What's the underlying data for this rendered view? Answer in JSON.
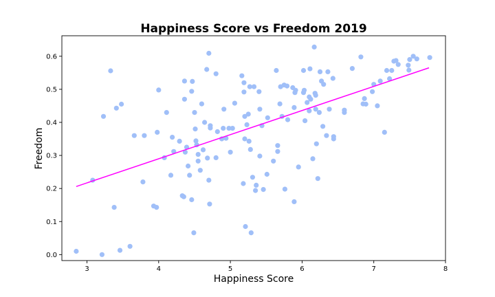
{
  "chart_data": {
    "type": "scatter",
    "title": "Happiness Score vs Freedom 2019",
    "xlabel": "Happiness Score",
    "ylabel": "Freedom",
    "xlim": [
      2.65,
      8.0
    ],
    "ylim": [
      -0.018,
      0.662
    ],
    "xticks": [
      {
        "value": 3,
        "label": "3"
      },
      {
        "value": 4,
        "label": "4"
      },
      {
        "value": 5,
        "label": "5"
      },
      {
        "value": 6,
        "label": "6"
      },
      {
        "value": 7,
        "label": "7"
      },
      {
        "value": 8,
        "label": "8"
      }
    ],
    "yticks": [
      {
        "value": 0.0,
        "label": "0.0"
      },
      {
        "value": 0.1,
        "label": "0.1"
      },
      {
        "value": 0.2,
        "label": "0.2"
      },
      {
        "value": 0.3,
        "label": "0.3"
      },
      {
        "value": 0.4,
        "label": "0.4"
      },
      {
        "value": 0.5,
        "label": "0.5"
      },
      {
        "value": 0.6,
        "label": "0.6"
      }
    ],
    "grid": false,
    "point_color": "#a0bff8",
    "line_color": "#ff00ff",
    "points": [
      [
        2.85,
        0.01
      ],
      [
        3.08,
        0.225
      ],
      [
        3.21,
        0.0
      ],
      [
        3.23,
        0.418
      ],
      [
        3.33,
        0.556
      ],
      [
        3.38,
        0.143
      ],
      [
        3.41,
        0.443
      ],
      [
        3.46,
        0.013
      ],
      [
        3.48,
        0.455
      ],
      [
        3.6,
        0.025
      ],
      [
        3.66,
        0.36
      ],
      [
        3.78,
        0.22
      ],
      [
        3.8,
        0.36
      ],
      [
        3.93,
        0.147
      ],
      [
        3.97,
        0.143
      ],
      [
        3.98,
        0.37
      ],
      [
        4.0,
        0.498
      ],
      [
        4.08,
        0.293
      ],
      [
        4.11,
        0.43
      ],
      [
        4.17,
        0.24
      ],
      [
        4.19,
        0.355
      ],
      [
        4.21,
        0.312
      ],
      [
        4.29,
        0.343
      ],
      [
        4.33,
        0.178
      ],
      [
        4.35,
        0.175
      ],
      [
        4.36,
        0.47
      ],
      [
        4.36,
        0.525
      ],
      [
        4.37,
        0.31
      ],
      [
        4.39,
        0.325
      ],
      [
        4.41,
        0.268
      ],
      [
        4.43,
        0.24
      ],
      [
        4.46,
        0.166
      ],
      [
        4.46,
        0.494
      ],
      [
        4.47,
        0.524
      ],
      [
        4.49,
        0.066
      ],
      [
        4.5,
        0.43
      ],
      [
        4.51,
        0.38
      ],
      [
        4.52,
        0.344
      ],
      [
        4.53,
        0.332
      ],
      [
        4.55,
        0.303
      ],
      [
        4.55,
        0.283
      ],
      [
        4.58,
        0.255
      ],
      [
        4.6,
        0.456
      ],
      [
        4.62,
        0.317
      ],
      [
        4.64,
        0.4
      ],
      [
        4.67,
        0.56
      ],
      [
        4.68,
        0.292
      ],
      [
        4.7,
        0.609
      ],
      [
        4.7,
        0.225
      ],
      [
        4.71,
        0.153
      ],
      [
        4.72,
        0.39
      ],
      [
        4.72,
        0.383
      ],
      [
        4.8,
        0.547
      ],
      [
        4.8,
        0.293
      ],
      [
        4.82,
        0.372
      ],
      [
        4.88,
        0.35
      ],
      [
        4.9,
        0.382
      ],
      [
        4.91,
        0.44
      ],
      [
        4.94,
        0.352
      ],
      [
        4.98,
        0.382
      ],
      [
        5.0,
        0.31
      ],
      [
        5.03,
        0.382
      ],
      [
        5.06,
        0.458
      ],
      [
        5.16,
        0.541
      ],
      [
        5.18,
        0.215
      ],
      [
        5.19,
        0.492
      ],
      [
        5.19,
        0.52
      ],
      [
        5.2,
        0.35
      ],
      [
        5.2,
        0.418
      ],
      [
        5.21,
        0.085
      ],
      [
        5.23,
        0.393
      ],
      [
        5.25,
        0.425
      ],
      [
        5.26,
        0.343
      ],
      [
        5.27,
        0.508
      ],
      [
        5.28,
        0.318
      ],
      [
        5.29,
        0.066
      ],
      [
        5.31,
        0.234
      ],
      [
        5.33,
        0.508
      ],
      [
        5.35,
        0.194
      ],
      [
        5.36,
        0.21
      ],
      [
        5.4,
        0.493
      ],
      [
        5.41,
        0.298
      ],
      [
        5.41,
        0.44
      ],
      [
        5.44,
        0.39
      ],
      [
        5.46,
        0.197
      ],
      [
        5.51,
        0.243
      ],
      [
        5.52,
        0.414
      ],
      [
        5.6,
        0.283
      ],
      [
        5.64,
        0.557
      ],
      [
        5.66,
        0.33
      ],
      [
        5.66,
        0.312
      ],
      [
        5.69,
        0.456
      ],
      [
        5.7,
        0.508
      ],
      [
        5.72,
        0.418
      ],
      [
        5.75,
        0.513
      ],
      [
        5.76,
        0.198
      ],
      [
        5.79,
        0.51
      ],
      [
        5.8,
        0.408
      ],
      [
        5.87,
        0.505
      ],
      [
        5.89,
        0.16
      ],
      [
        5.89,
        0.445
      ],
      [
        5.9,
        0.49
      ],
      [
        5.91,
        0.497
      ],
      [
        5.95,
        0.265
      ],
      [
        6.02,
        0.557
      ],
      [
        6.02,
        0.49
      ],
      [
        6.03,
        0.497
      ],
      [
        6.04,
        0.405
      ],
      [
        6.07,
        0.46
      ],
      [
        6.1,
        0.477
      ],
      [
        6.1,
        0.435
      ],
      [
        6.11,
        0.562
      ],
      [
        6.12,
        0.47
      ],
      [
        6.15,
        0.29
      ],
      [
        6.17,
        0.628
      ],
      [
        6.18,
        0.488
      ],
      [
        6.19,
        0.482
      ],
      [
        6.19,
        0.44
      ],
      [
        6.2,
        0.335
      ],
      [
        6.22,
        0.23
      ],
      [
        6.24,
        0.43
      ],
      [
        6.25,
        0.553
      ],
      [
        6.27,
        0.525
      ],
      [
        6.29,
        0.388
      ],
      [
        6.3,
        0.515
      ],
      [
        6.34,
        0.36
      ],
      [
        6.36,
        0.553
      ],
      [
        6.38,
        0.44
      ],
      [
        6.43,
        0.533
      ],
      [
        6.44,
        0.357
      ],
      [
        6.44,
        0.35
      ],
      [
        6.59,
        0.437
      ],
      [
        6.59,
        0.43
      ],
      [
        6.7,
        0.563
      ],
      [
        6.82,
        0.598
      ],
      [
        6.85,
        0.456
      ],
      [
        6.87,
        0.472
      ],
      [
        6.89,
        0.455
      ],
      [
        6.98,
        0.493
      ],
      [
        7.0,
        0.515
      ],
      [
        7.05,
        0.45
      ],
      [
        7.09,
        0.525
      ],
      [
        7.15,
        0.37
      ],
      [
        7.18,
        0.557
      ],
      [
        7.22,
        0.532
      ],
      [
        7.25,
        0.557
      ],
      [
        7.28,
        0.585
      ],
      [
        7.31,
        0.587
      ],
      [
        7.34,
        0.575
      ],
      [
        7.48,
        0.573
      ],
      [
        7.49,
        0.558
      ],
      [
        7.5,
        0.59
      ],
      [
        7.55,
        0.6
      ],
      [
        7.6,
        0.592
      ],
      [
        7.78,
        0.596
      ]
    ],
    "regression": {
      "x": [
        2.85,
        7.77
      ],
      "y": [
        0.206,
        0.565
      ]
    }
  }
}
